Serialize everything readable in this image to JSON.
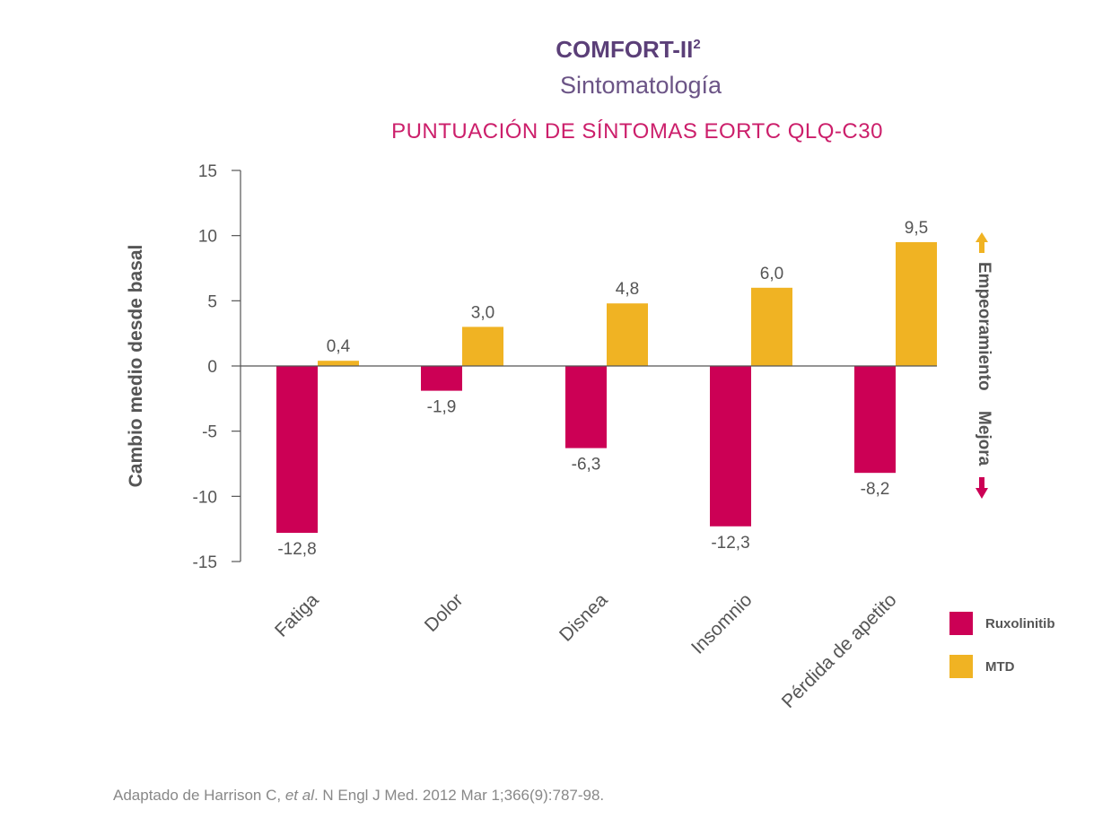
{
  "header": {
    "title": "COMFORT-II",
    "title_sup": "2",
    "subtitle": "Sintomatología"
  },
  "chart_data": {
    "type": "bar",
    "title": "PUNTUACIÓN DE SÍNTOMAS EORTC QLQ-C30",
    "ylabel": "Cambio medio desde basal",
    "xlabel": "",
    "ylim": [
      -15,
      15
    ],
    "yticks": [
      15,
      10,
      5,
      0,
      -5,
      -10,
      -15
    ],
    "categories": [
      "Fatiga",
      "Dolor",
      "Disnea",
      "Insomnio",
      "Pérdida de apetito"
    ],
    "series": [
      {
        "name": "Ruxolinitib",
        "color": "#cc0055",
        "values": [
          -12.8,
          -1.9,
          -6.3,
          -12.3,
          -8.2
        ],
        "labels": [
          "-12,8",
          "-1,9",
          "-6,3",
          "-12,3",
          "-8,2"
        ]
      },
      {
        "name": "MTD",
        "color": "#f0b323",
        "values": [
          0.4,
          3.0,
          4.8,
          6.0,
          9.5
        ],
        "labels": [
          "0,4",
          "3,0",
          "4,8",
          "6,0",
          "9,5"
        ]
      }
    ],
    "side_annotation": {
      "worsening": "Empeoramiento",
      "improvement": "Mejora",
      "worsening_color": "#f0b323",
      "improvement_color": "#cc0055"
    },
    "legend_position": "bottom-right",
    "grid": false
  },
  "footer": {
    "source_prefix": "Adaptado de Harrison C, ",
    "source_italic": "et al",
    "source_suffix": ". N Engl J Med. 2012 Mar 1;366(9):787-98."
  }
}
